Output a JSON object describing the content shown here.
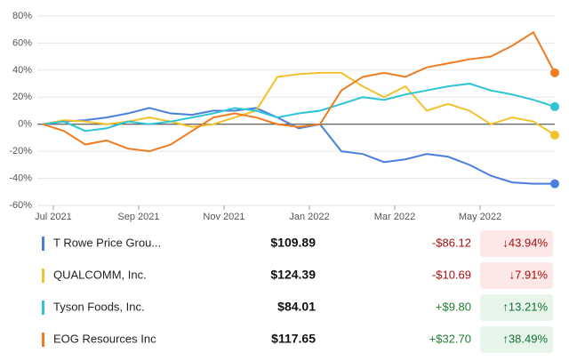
{
  "chart_data": {
    "type": "line",
    "x": [
      -0.25,
      0.25,
      0.75,
      1.25,
      1.75,
      2.25,
      2.75,
      3.25,
      3.75,
      4.25,
      4.75,
      5.25,
      5.75,
      6.25,
      6.75,
      7.25,
      7.75,
      8.25,
      8.75,
      9.25,
      9.75,
      10.25,
      10.75,
      11.25,
      11.75
    ],
    "xlim": [
      -0.27,
      11.75
    ],
    "xticks": [
      {
        "value": 0,
        "label": "Jul 2021"
      },
      {
        "value": 2,
        "label": "Sep 2021"
      },
      {
        "value": 4,
        "label": "Nov 2021"
      },
      {
        "value": 6,
        "label": "Jan 2022"
      },
      {
        "value": 8,
        "label": "Mar 2022"
      },
      {
        "value": 10,
        "label": "May 2022"
      }
    ],
    "ylim": [
      -60,
      80
    ],
    "yticks": [
      {
        "value": -60,
        "label": "-60%"
      },
      {
        "value": -40,
        "label": "-40%"
      },
      {
        "value": -20,
        "label": "-20%"
      },
      {
        "value": 0,
        "label": "0%"
      },
      {
        "value": 20,
        "label": "20%"
      },
      {
        "value": 40,
        "label": "40%"
      },
      {
        "value": 60,
        "label": "60%"
      },
      {
        "value": 80,
        "label": "80%"
      }
    ],
    "grid": true,
    "series": [
      {
        "name": "T Rowe Price Grou...",
        "color": "#4a7fdc",
        "price": "$109.89",
        "change": "-$86.12",
        "change_pct": "↓43.94%",
        "values": [
          0,
          2,
          3,
          5,
          8,
          12,
          8,
          7,
          10,
          10,
          12,
          5,
          -3,
          0,
          -20,
          -22,
          -28,
          -26,
          -22,
          -24,
          -30,
          -38,
          -43,
          -44,
          -44
        ]
      },
      {
        "name": "QUALCOMM, Inc.",
        "color": "#f2c12e",
        "price": "$124.39",
        "change": "-$10.69",
        "change_pct": "↓7.91%",
        "values": [
          0,
          3,
          2,
          0,
          2,
          5,
          2,
          -2,
          0,
          5,
          10,
          35,
          37,
          38,
          38,
          28,
          20,
          28,
          10,
          15,
          10,
          0,
          5,
          2,
          -8
        ]
      },
      {
        "name": "Tyson Foods, Inc.",
        "color": "#2ec4d6",
        "price": "$84.01",
        "change": "+$9.80",
        "change_pct": "↑13.21%",
        "values": [
          0,
          2,
          -5,
          -3,
          2,
          0,
          2,
          5,
          8,
          12,
          10,
          5,
          8,
          10,
          15,
          20,
          18,
          22,
          25,
          28,
          30,
          25,
          22,
          18,
          13
        ]
      },
      {
        "name": "EOG Resources Inc",
        "color": "#f07c22",
        "price": "$117.65",
        "change": "+$32.70",
        "change_pct": "↑38.49%",
        "values": [
          0,
          -5,
          -15,
          -12,
          -18,
          -20,
          -15,
          -5,
          5,
          8,
          5,
          0,
          -2,
          0,
          25,
          35,
          38,
          35,
          42,
          45,
          48,
          50,
          58,
          68,
          38
        ]
      }
    ]
  }
}
